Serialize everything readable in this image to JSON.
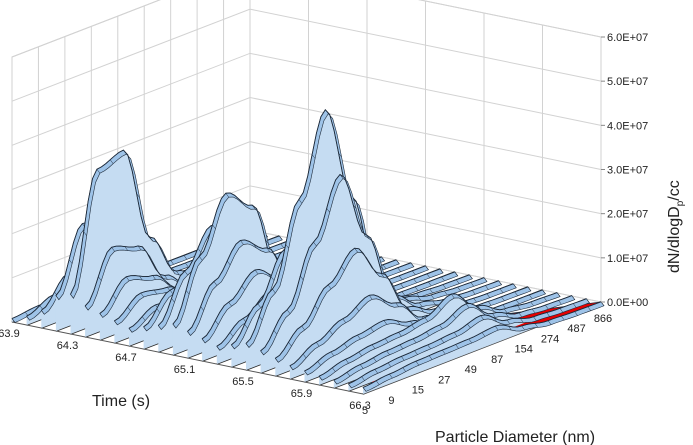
{
  "chart_data": {
    "type": "surface",
    "xlabel": "Time (s)",
    "ylabel": "Particle Diameter (nm)",
    "zlabel_main": "dN/dlogD",
    "zlabel_sub": "p",
    "zlabel_tail": "/cc",
    "time_ticks": [
      "63.9",
      "64.3",
      "64.7",
      "65.1",
      "65.5",
      "65.9",
      "66.3"
    ],
    "diameter_ticks": [
      "5",
      "9",
      "15",
      "27",
      "49",
      "87",
      "154",
      "274",
      "487",
      "866"
    ],
    "z_ticks": [
      "0.0E+00",
      "1.0E+07",
      "2.0E+07",
      "3.0E+07",
      "4.0E+07",
      "5.0E+07",
      "6.0E+07"
    ],
    "zlim": [
      0,
      60000000
    ],
    "grid": true,
    "colors": {
      "surface_fill": "#c5dcf2",
      "surface_front": "#9ec3e8",
      "surface_top": "#7aa6d2",
      "surface_edge": "#1d2a3a",
      "background_layer": "#e60000",
      "grid": "#d2d2d2",
      "floor_dark": "#2a2a2a"
    },
    "series": [
      {
        "time": "63.9",
        "diameters_nm": [
          5,
          9,
          15,
          27,
          49,
          87,
          154,
          274,
          487,
          866
        ],
        "values": [
          800000.0,
          1400000.0,
          900000.0,
          400000.0,
          200000.0,
          100000.0,
          50000.0,
          30000.0,
          20000.0,
          10000.0
        ]
      },
      {
        "time": "64.0",
        "diameters_nm": [
          5,
          9,
          15,
          27,
          49,
          87,
          154,
          274,
          487,
          866
        ],
        "values": [
          2000000.0,
          4500000.0,
          3000000.0,
          1500000.0,
          700000.0,
          300000.0,
          150000.0,
          80000.0,
          40000.0,
          20000.0
        ]
      },
      {
        "time": "64.1",
        "diameters_nm": [
          5,
          9,
          15,
          27,
          49,
          87,
          154,
          274,
          487,
          866
        ],
        "values": [
          4000000.0,
          10000000.0,
          8000000.0,
          4000000.0,
          1500000.0,
          600000.0,
          300000.0,
          150000.0,
          80000.0,
          30000.0
        ]
      },
      {
        "time": "64.2",
        "diameters_nm": [
          5,
          9,
          15,
          27,
          49,
          87,
          154,
          274,
          487,
          866
        ],
        "values": [
          8000000.0,
          22000000.0,
          20000000.0,
          9000000.0,
          3000000.0,
          1000000.0,
          500000.0,
          200000.0,
          100000.0,
          50000.0
        ]
      },
      {
        "time": "64.3",
        "diameters_nm": [
          5,
          9,
          15,
          27,
          49,
          87,
          154,
          274,
          487,
          866
        ],
        "values": [
          9000000.0,
          35000000.0,
          37000000.0,
          15000000.0,
          5000000.0,
          1500000.0,
          600000.0,
          250000.0,
          100000.0,
          50000.0
        ]
      },
      {
        "time": "64.4",
        "diameters_nm": [
          5,
          9,
          15,
          27,
          49,
          87,
          154,
          274,
          487,
          866
        ],
        "values": [
          7000000.0,
          18000000.0,
          16000000.0,
          7000000.0,
          2500000.0,
          900000.0,
          400000.0,
          150000.0,
          80000.0,
          40000.0
        ]
      },
      {
        "time": "64.5",
        "diameters_nm": [
          5,
          9,
          15,
          27,
          49,
          87,
          154,
          274,
          487,
          866
        ],
        "values": [
          6000000.0,
          12000000.0,
          10000000.0,
          5000000.0,
          2000000.0,
          700000.0,
          300000.0,
          120000.0,
          60000.0,
          30000.0
        ]
      },
      {
        "time": "64.6",
        "diameters_nm": [
          5,
          9,
          15,
          27,
          49,
          87,
          154,
          274,
          487,
          866
        ],
        "values": [
          5000000.0,
          9000000.0,
          8000000.0,
          4000000.0,
          1500000.0,
          500000.0,
          250000.0,
          100000.0,
          50000.0,
          20000.0
        ]
      },
      {
        "time": "64.7",
        "diameters_nm": [
          5,
          9,
          15,
          27,
          49,
          87,
          154,
          274,
          487,
          866
        ],
        "values": [
          4000000.0,
          7000000.0,
          6000000.0,
          3000000.0,
          1200000.0,
          400000.0,
          200000.0,
          80000.0,
          40000.0,
          20000.0
        ]
      },
      {
        "time": "64.8",
        "diameters_nm": [
          5,
          9,
          15,
          27,
          49,
          87,
          154,
          274,
          487,
          866
        ],
        "values": [
          5000000.0,
          11000000.0,
          14000000.0,
          9000000.0,
          3000000.0,
          1000000.0,
          400000.0,
          150000.0,
          70000.0,
          30000.0
        ]
      },
      {
        "time": "64.9",
        "diameters_nm": [
          5,
          9,
          15,
          27,
          49,
          87,
          154,
          274,
          487,
          866
        ],
        "values": [
          6000000.0,
          16000000.0,
          24000000.0,
          18000000.0,
          6000000.0,
          2000000.0,
          700000.0,
          250000.0,
          100000.0,
          40000.0
        ]
      },
      {
        "time": "65.0",
        "diameters_nm": [
          5,
          9,
          15,
          27,
          49,
          87,
          154,
          274,
          487,
          866
        ],
        "values": [
          7000000.0,
          20000000.0,
          32000000.0,
          27000000.0,
          9000000.0,
          3000000.0,
          1000000.0,
          350000.0,
          120000.0,
          50000.0
        ]
      },
      {
        "time": "65.1",
        "diameters_nm": [
          5,
          9,
          15,
          27,
          49,
          87,
          154,
          274,
          487,
          866
        ],
        "values": [
          6000000.0,
          15000000.0,
          22000000.0,
          18000000.0,
          7000000.0,
          2500000.0,
          900000.0,
          300000.0,
          100000.0,
          40000.0
        ]
      },
      {
        "time": "65.2",
        "diameters_nm": [
          5,
          9,
          15,
          27,
          49,
          87,
          154,
          274,
          487,
          866
        ],
        "values": [
          5000000.0,
          11000000.0,
          16000000.0,
          12000000.0,
          5000000.0,
          1800000.0,
          600000.0,
          200000.0,
          80000.0,
          30000.0
        ]
      },
      {
        "time": "65.3",
        "diameters_nm": [
          5,
          9,
          15,
          27,
          49,
          87,
          154,
          274,
          487,
          866
        ],
        "values": [
          4000000.0,
          8000000.0,
          12000000.0,
          10000000.0,
          4000000.0,
          1400000.0,
          500000.0,
          180000.0,
          70000.0,
          30000.0
        ]
      },
      {
        "time": "65.4",
        "diameters_nm": [
          5,
          9,
          15,
          27,
          49,
          87,
          154,
          274,
          487,
          866
        ],
        "values": [
          5000000.0,
          12000000.0,
          22000000.0,
          33000000.0,
          18000000.0,
          5000000.0,
          1500000.0,
          500000.0,
          150000.0,
          50000.0
        ]
      },
      {
        "time": "65.5",
        "diameters_nm": [
          5,
          9,
          15,
          27,
          49,
          87,
          154,
          274,
          487,
          866
        ],
        "values": [
          6000000.0,
          16000000.0,
          34000000.0,
          52000000.0,
          30000000.0,
          8000000.0,
          2500000.0,
          800000.0,
          250000.0,
          80000.0
        ]
      },
      {
        "time": "65.6",
        "diameters_nm": [
          5,
          9,
          15,
          27,
          49,
          87,
          154,
          274,
          487,
          866
        ],
        "values": [
          5000000.0,
          12000000.0,
          25000000.0,
          38000000.0,
          22000000.0,
          6000000.0,
          2000000.0,
          600000.0,
          200000.0,
          60000.0
        ]
      },
      {
        "time": "65.7",
        "diameters_nm": [
          5,
          9,
          15,
          27,
          49,
          87,
          154,
          274,
          487,
          866
        ],
        "values": [
          4000000.0,
          9000000.0,
          16000000.0,
          22000000.0,
          14000000.0,
          4000000.0,
          1300000.0,
          400000.0,
          120000.0,
          40000.0
        ]
      },
      {
        "time": "65.8",
        "diameters_nm": [
          5,
          9,
          15,
          27,
          49,
          87,
          154,
          274,
          487,
          866
        ],
        "values": [
          3000000.0,
          6000000.0,
          9000000.0,
          12000000.0,
          8000000.0,
          2500000.0,
          900000.0,
          300000.0,
          100000.0,
          30000.0
        ]
      },
      {
        "time": "65.9",
        "diameters_nm": [
          5,
          9,
          15,
          27,
          49,
          87,
          154,
          274,
          487,
          866
        ],
        "values": [
          2500000.0,
          4500000.0,
          6000000.0,
          7000000.0,
          4500000.0,
          1500000.0,
          600000.0,
          200000.0,
          80000.0,
          30000.0
        ]
      },
      {
        "time": "66.0",
        "diameters_nm": [
          5,
          9,
          15,
          27,
          49,
          87,
          154,
          274,
          487,
          866
        ],
        "values": [
          2000000.0,
          3500000.0,
          4500000.0,
          5000000.0,
          6000000.0,
          9000000.0,
          4000000.0,
          1000000.0,
          300000.0,
          100000.0
        ]
      },
      {
        "time": "66.1",
        "diameters_nm": [
          5,
          9,
          15,
          27,
          49,
          87,
          154,
          274,
          487,
          866
        ],
        "values": [
          1800000.0,
          3000000.0,
          3800000.0,
          4200000.0,
          5000000.0,
          7500000.0,
          3000000.0,
          800000.0,
          250000.0,
          80000.0
        ]
      },
      {
        "time": "66.2",
        "diameters_nm": [
          5,
          9,
          15,
          27,
          49,
          87,
          154,
          274,
          487,
          866
        ],
        "values": [
          1600000.0,
          2600000.0,
          3200000.0,
          3500000.0,
          4000000.0,
          5500000.0,
          2200000.0,
          600000.0,
          200000.0,
          70000.0
        ]
      },
      {
        "time": "66.3",
        "diameters_nm": [
          5,
          9,
          15,
          27,
          49,
          87,
          154,
          274,
          487,
          866
        ],
        "values": [
          1500000.0,
          2200000.0,
          2800000.0,
          3000000.0,
          3200000.0,
          3800000.0,
          1500000.0,
          400000.0,
          150000.0,
          50000.0
        ]
      }
    ]
  }
}
